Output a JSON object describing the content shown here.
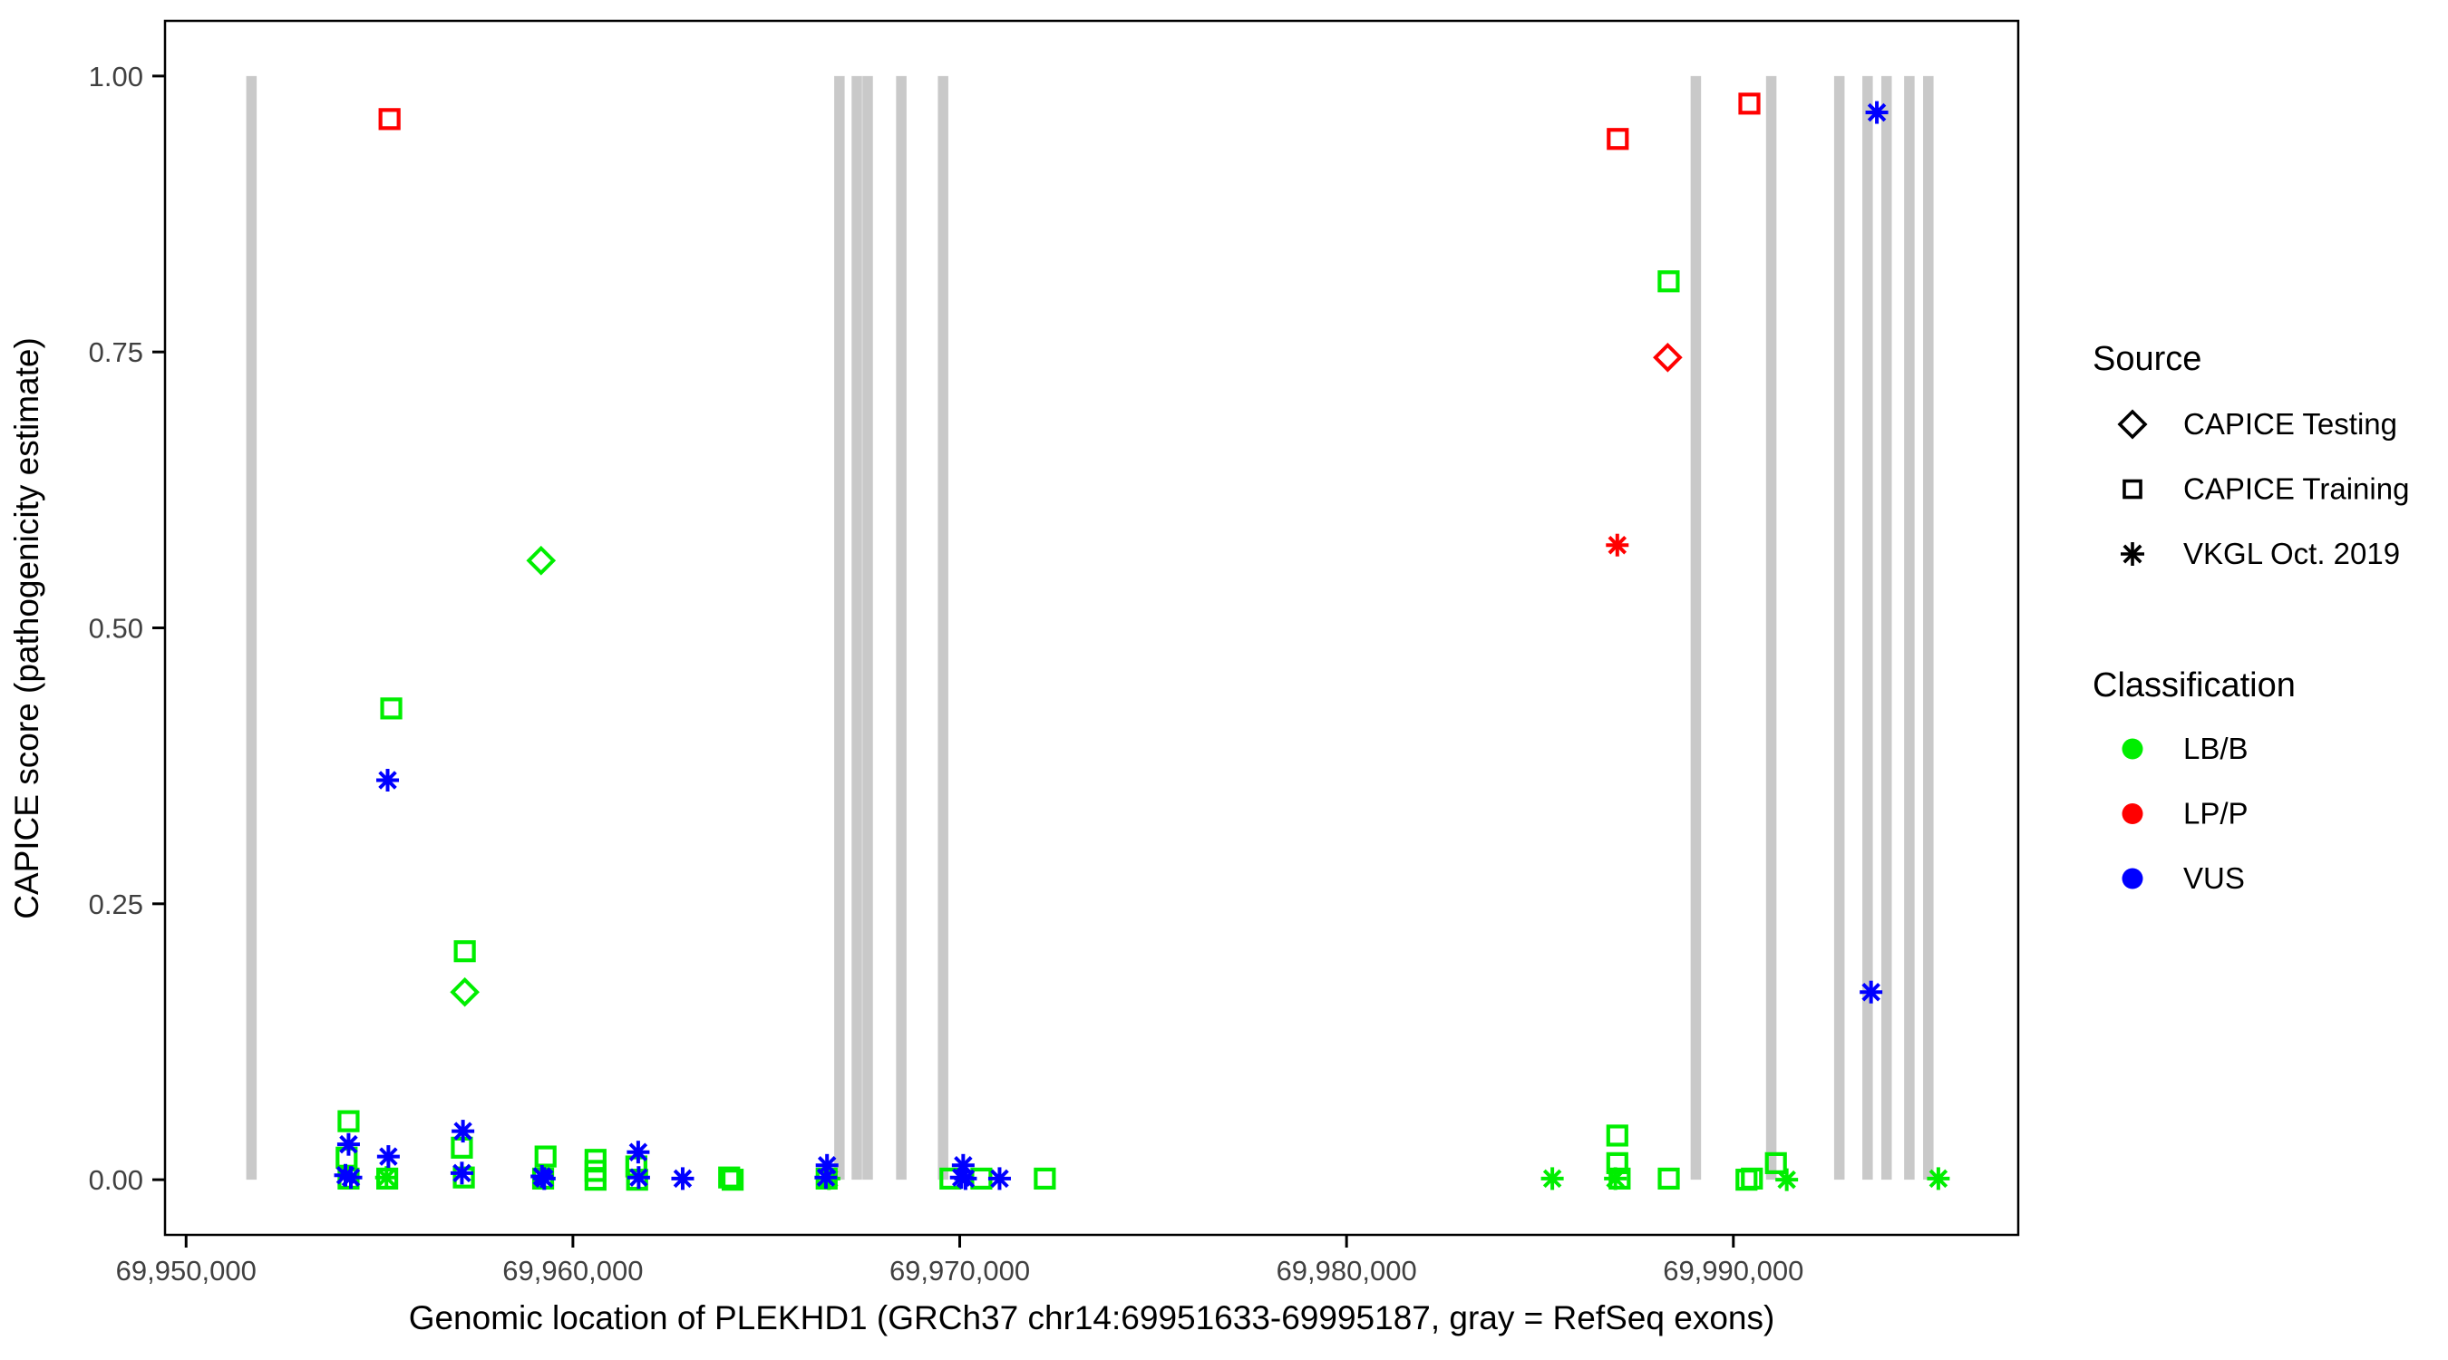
{
  "figure": {
    "xlabel": "Genomic location of PLEKHD1 (GRCh37 chr14:69951633-69995187, gray = RefSeq exons)",
    "ylabel": "CAPICE score (pathogenicity estimate)"
  },
  "legend": {
    "source": {
      "title": "Source",
      "items": [
        {
          "shape": "diamond",
          "label": "CAPICE Testing"
        },
        {
          "shape": "square",
          "label": "CAPICE Training"
        },
        {
          "shape": "asterisk",
          "label": "VKGL Oct. 2019"
        }
      ]
    },
    "classification": {
      "title": "Classification",
      "items": [
        {
          "color_key": "LB/B",
          "label": "LB/B"
        },
        {
          "color_key": "LP/P",
          "label": "LP/P"
        },
        {
          "color_key": "VUS",
          "label": "VUS"
        }
      ]
    }
  },
  "chart_data": {
    "type": "scatter",
    "title": "",
    "xlabel": "Genomic location of PLEKHD1 (GRCh37 chr14:69951633-69995187, gray = RefSeq exons)",
    "ylabel": "CAPICE score (pathogenicity estimate)",
    "grid": false,
    "legend_position": "right",
    "x_domain": [
      69949455,
      69997365
    ],
    "y_domain": [
      -0.05,
      1.05
    ],
    "x_ticks": [
      {
        "v": 69950000,
        "label": "69,950,000"
      },
      {
        "v": 69960000,
        "label": "69,960,000"
      },
      {
        "v": 69970000,
        "label": "69,970,000"
      },
      {
        "v": 69980000,
        "label": "69,980,000"
      },
      {
        "v": 69990000,
        "label": "69,990,000"
      }
    ],
    "y_ticks": [
      {
        "v": 0.0,
        "label": "0.00"
      },
      {
        "v": 0.25,
        "label": "0.25"
      },
      {
        "v": 0.5,
        "label": "0.50"
      },
      {
        "v": 0.75,
        "label": "0.75"
      },
      {
        "v": 1.0,
        "label": "1.00"
      }
    ],
    "colors": {
      "LB/B": "#00ee00",
      "LP/P": "#ff0000",
      "VUS": "#0000ff",
      "exon": "#c9c9c9",
      "axis": "#000000",
      "tick_label": "#404040"
    },
    "class_draw_order": [
      "LB/B",
      "VUS",
      "LP/P"
    ],
    "exon_width_units": 270,
    "exons": [
      69951690,
      69966890,
      69967340,
      69967620,
      69968490,
      69969570,
      69989030,
      69990980,
      69992740,
      69993470,
      69993960,
      69994550,
      69995040
    ],
    "points_columns": [
      "position",
      "score",
      "classification",
      "source"
    ],
    "points": [
      [
        69954200,
        0.053,
        "LB/B",
        "training"
      ],
      [
        69954150,
        0.02,
        "LB/B",
        "training"
      ],
      [
        69954200,
        0.001,
        "LB/B",
        "training"
      ],
      [
        69954120,
        0.004,
        "VUS",
        "vkgl"
      ],
      [
        69954200,
        0.032,
        "VUS",
        "vkgl"
      ],
      [
        69954260,
        0.002,
        "VUS",
        "vkgl"
      ],
      [
        69955180,
        0.002,
        "LB/B",
        "vkgl"
      ],
      [
        69955200,
        0.001,
        "LB/B",
        "training"
      ],
      [
        69955230,
        0.021,
        "VUS",
        "vkgl"
      ],
      [
        69955210,
        0.362,
        "VUS",
        "vkgl"
      ],
      [
        69955304,
        0.427,
        "LB/B",
        "training"
      ],
      [
        69955260,
        0.961,
        "LP/P",
        "training"
      ],
      [
        69957205,
        0.207,
        "LB/B",
        "training"
      ],
      [
        69957205,
        0.17,
        "LB/B",
        "testing"
      ],
      [
        69957130,
        0.029,
        "LB/B",
        "training"
      ],
      [
        69957180,
        0.002,
        "LB/B",
        "training"
      ],
      [
        69957158,
        0.044,
        "VUS",
        "vkgl"
      ],
      [
        69957130,
        0.006,
        "VUS",
        "vkgl"
      ],
      [
        69959177,
        0.561,
        "LB/B",
        "testing"
      ],
      [
        69959293,
        0.021,
        "LB/B",
        "training"
      ],
      [
        69959230,
        0.001,
        "LB/B",
        "training"
      ],
      [
        69959200,
        0.003,
        "VUS",
        "vkgl"
      ],
      [
        69959260,
        0.001,
        "VUS",
        "vkgl"
      ],
      [
        69960585,
        0.018,
        "LB/B",
        "training"
      ],
      [
        69960585,
        0.008,
        "LB/B",
        "training"
      ],
      [
        69960585,
        0.0,
        "LB/B",
        "training"
      ],
      [
        69961640,
        0.012,
        "LB/B",
        "training"
      ],
      [
        69961660,
        0.0,
        "LB/B",
        "training"
      ],
      [
        69961688,
        0.025,
        "VUS",
        "vkgl"
      ],
      [
        69961700,
        0.002,
        "VUS",
        "vkgl"
      ],
      [
        69962838,
        0.001,
        "VUS",
        "vkgl"
      ],
      [
        69964040,
        0.002,
        "LB/B",
        "training"
      ],
      [
        69964130,
        0.0,
        "LB/B",
        "training"
      ],
      [
        69966560,
        0.001,
        "LB/B",
        "training"
      ],
      [
        69966620,
        0.001,
        "LB/B",
        "vkgl"
      ],
      [
        69966570,
        0.013,
        "VUS",
        "vkgl"
      ],
      [
        69966540,
        0.002,
        "VUS",
        "vkgl"
      ],
      [
        69969760,
        0.001,
        "LB/B",
        "training"
      ],
      [
        69970560,
        0.001,
        "LB/B",
        "training"
      ],
      [
        69970090,
        0.013,
        "VUS",
        "vkgl"
      ],
      [
        69970040,
        0.002,
        "VUS",
        "vkgl"
      ],
      [
        69970150,
        0.001,
        "VUS",
        "vkgl"
      ],
      [
        69971030,
        0.001,
        "VUS",
        "vkgl"
      ],
      [
        69972200,
        0.001,
        "LB/B",
        "training"
      ],
      [
        69985320,
        0.001,
        "LB/B",
        "vkgl"
      ],
      [
        69987000,
        0.04,
        "LB/B",
        "training"
      ],
      [
        69987000,
        0.015,
        "LB/B",
        "training"
      ],
      [
        69986950,
        0.001,
        "LB/B",
        "vkgl"
      ],
      [
        69987060,
        0.001,
        "LB/B",
        "training"
      ],
      [
        69988330,
        0.001,
        "LB/B",
        "training"
      ],
      [
        69990340,
        0.0,
        "LB/B",
        "training"
      ],
      [
        69990480,
        0.001,
        "LB/B",
        "training"
      ],
      [
        69991100,
        0.015,
        "LB/B",
        "training"
      ],
      [
        69991380,
        0.0,
        "LB/B",
        "vkgl"
      ],
      [
        69995300,
        0.001,
        "LB/B",
        "vkgl"
      ],
      [
        69988327,
        0.814,
        "LB/B",
        "training"
      ],
      [
        69987012,
        0.943,
        "LP/P",
        "training"
      ],
      [
        69990415,
        0.975,
        "LP/P",
        "training"
      ],
      [
        69988303,
        0.745,
        "LP/P",
        "testing"
      ],
      [
        69987000,
        0.575,
        "LP/P",
        "vkgl"
      ],
      [
        69993710,
        0.967,
        "VUS",
        "vkgl"
      ],
      [
        69993560,
        0.17,
        "VUS",
        "vkgl"
      ]
    ]
  }
}
